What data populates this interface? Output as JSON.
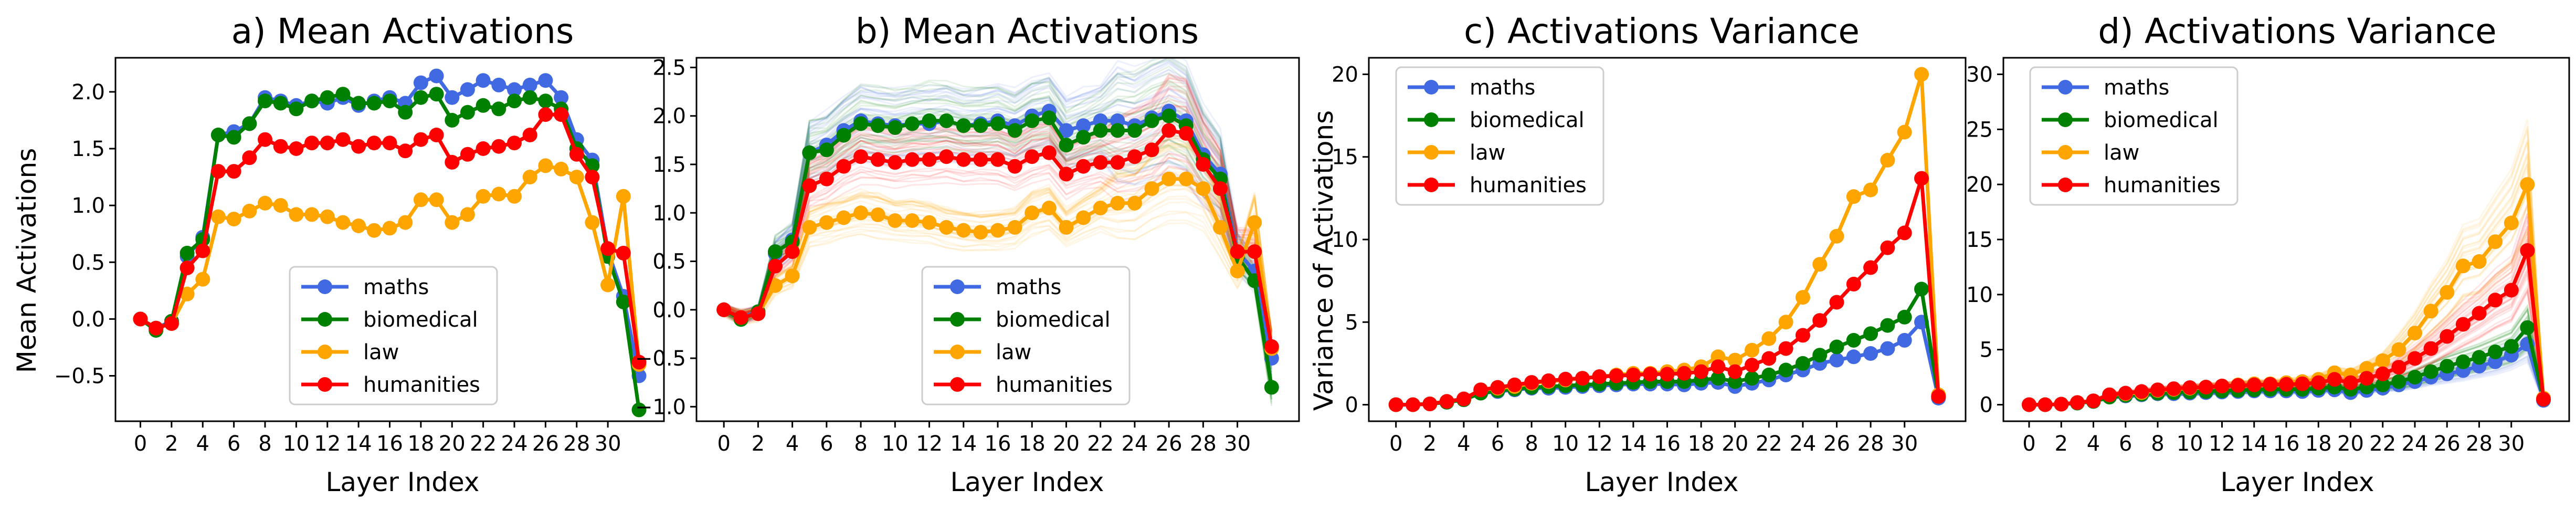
{
  "figure": {
    "panels": [
      {
        "title": "a) Mean Activations",
        "xlabel": "Layer Index",
        "ylabel": "Mean Activations"
      },
      {
        "title": "b) Mean Activations",
        "xlabel": "Layer Index",
        "ylabel": ""
      },
      {
        "title": "c) Activations Variance",
        "xlabel": "Layer Index",
        "ylabel": "Variance of Activations"
      },
      {
        "title": "d) Activations Variance",
        "xlabel": "Layer Index",
        "ylabel": ""
      }
    ]
  },
  "chart_data": [
    {
      "type": "line",
      "title": "a) Mean Activations",
      "xlabel": "Layer Index",
      "ylabel": "Mean Activations",
      "x": [
        0,
        1,
        2,
        3,
        4,
        5,
        6,
        7,
        8,
        9,
        10,
        11,
        12,
        13,
        14,
        15,
        16,
        17,
        18,
        19,
        20,
        21,
        22,
        23,
        24,
        25,
        26,
        27,
        28,
        29,
        30,
        31,
        32
      ],
      "xticks": [
        0,
        2,
        4,
        6,
        8,
        10,
        12,
        14,
        16,
        18,
        20,
        22,
        24,
        26,
        28,
        30
      ],
      "xlim": [
        -1.6,
        33.6
      ],
      "yticks": [
        -0.5,
        0.0,
        0.5,
        1.0,
        1.5,
        2.0
      ],
      "ylim": [
        -0.9,
        2.3
      ],
      "legend_position": "lower center",
      "series": [
        {
          "name": "maths",
          "color": "#4169e1",
          "values": [
            0.0,
            -0.08,
            -0.02,
            0.55,
            0.72,
            1.62,
            1.65,
            1.72,
            1.95,
            1.92,
            1.88,
            1.92,
            1.9,
            1.95,
            1.88,
            1.92,
            1.95,
            1.9,
            2.08,
            2.14,
            1.95,
            2.02,
            2.1,
            2.06,
            2.02,
            2.06,
            2.1,
            1.95,
            1.58,
            1.4,
            0.6,
            0.2,
            -0.5
          ]
        },
        {
          "name": "biomedical",
          "color": "#008000",
          "values": [
            0.0,
            -0.1,
            -0.02,
            0.58,
            0.7,
            1.62,
            1.6,
            1.72,
            1.92,
            1.9,
            1.85,
            1.92,
            1.95,
            1.98,
            1.9,
            1.9,
            1.92,
            1.82,
            1.95,
            1.98,
            1.75,
            1.82,
            1.88,
            1.85,
            1.92,
            1.95,
            1.92,
            1.85,
            1.5,
            1.35,
            0.55,
            0.15,
            -0.8
          ]
        },
        {
          "name": "law",
          "color": "#ffa500",
          "values": [
            0.0,
            -0.08,
            -0.04,
            0.22,
            0.35,
            0.9,
            0.88,
            0.95,
            1.02,
            1.0,
            0.92,
            0.92,
            0.9,
            0.85,
            0.82,
            0.78,
            0.8,
            0.85,
            1.05,
            1.05,
            0.85,
            0.92,
            1.08,
            1.1,
            1.08,
            1.25,
            1.35,
            1.32,
            1.25,
            0.85,
            0.3,
            1.08,
            -0.4
          ]
        },
        {
          "name": "humanities",
          "color": "#ff0000",
          "values": [
            0.0,
            -0.08,
            -0.04,
            0.45,
            0.6,
            1.3,
            1.3,
            1.42,
            1.58,
            1.52,
            1.5,
            1.55,
            1.55,
            1.58,
            1.52,
            1.55,
            1.55,
            1.48,
            1.58,
            1.62,
            1.38,
            1.45,
            1.5,
            1.52,
            1.55,
            1.62,
            1.8,
            1.8,
            1.45,
            1.25,
            0.62,
            0.58,
            -0.38
          ]
        }
      ]
    },
    {
      "type": "line",
      "title": "b) Mean Activations",
      "xlabel": "Layer Index",
      "ylabel": "",
      "x": [
        0,
        1,
        2,
        3,
        4,
        5,
        6,
        7,
        8,
        9,
        10,
        11,
        12,
        13,
        14,
        15,
        16,
        17,
        18,
        19,
        20,
        21,
        22,
        23,
        24,
        25,
        26,
        27,
        28,
        29,
        30,
        31,
        32
      ],
      "xticks": [
        0,
        2,
        4,
        6,
        8,
        10,
        12,
        14,
        16,
        18,
        20,
        22,
        24,
        26,
        28,
        30
      ],
      "xlim": [
        -1.6,
        33.6
      ],
      "yticks": [
        -1.0,
        -0.5,
        0.0,
        0.5,
        1.0,
        1.5,
        2.0,
        2.5
      ],
      "ylim": [
        -1.15,
        2.6
      ],
      "legend_position": "lower center",
      "note_bands": "each series drawn with many faint per-sample lines spreading around the mean line",
      "series": [
        {
          "name": "maths",
          "color": "#4169e1",
          "values": [
            0.0,
            -0.08,
            -0.02,
            0.58,
            0.72,
            1.62,
            1.7,
            1.85,
            1.95,
            1.92,
            1.9,
            1.92,
            1.92,
            1.95,
            1.9,
            1.92,
            1.95,
            1.9,
            2.0,
            2.05,
            1.85,
            1.9,
            1.95,
            1.95,
            1.9,
            1.98,
            2.05,
            1.95,
            1.6,
            1.4,
            0.6,
            0.4,
            -0.5
          ]
        },
        {
          "name": "biomedical",
          "color": "#008000",
          "values": [
            0.0,
            -0.1,
            -0.02,
            0.6,
            0.7,
            1.62,
            1.65,
            1.8,
            1.92,
            1.9,
            1.88,
            1.92,
            1.95,
            1.95,
            1.9,
            1.9,
            1.92,
            1.85,
            1.95,
            1.98,
            1.7,
            1.78,
            1.85,
            1.85,
            1.85,
            1.95,
            2.0,
            1.9,
            1.55,
            1.35,
            0.55,
            0.3,
            -0.8
          ]
        },
        {
          "name": "law",
          "color": "#ffa500",
          "values": [
            0.0,
            -0.08,
            -0.04,
            0.25,
            0.35,
            0.85,
            0.9,
            0.95,
            1.0,
            0.98,
            0.92,
            0.92,
            0.9,
            0.85,
            0.82,
            0.8,
            0.82,
            0.85,
            1.0,
            1.05,
            0.85,
            0.95,
            1.05,
            1.1,
            1.1,
            1.25,
            1.35,
            1.35,
            1.25,
            0.85,
            0.4,
            0.9,
            -0.4
          ]
        },
        {
          "name": "humanities",
          "color": "#ff0000",
          "values": [
            0.0,
            -0.08,
            -0.04,
            0.45,
            0.6,
            1.28,
            1.35,
            1.48,
            1.58,
            1.55,
            1.52,
            1.55,
            1.55,
            1.58,
            1.55,
            1.55,
            1.55,
            1.48,
            1.58,
            1.62,
            1.4,
            1.48,
            1.52,
            1.52,
            1.58,
            1.65,
            1.85,
            1.82,
            1.5,
            1.25,
            0.6,
            0.6,
            -0.38
          ]
        }
      ]
    },
    {
      "type": "line",
      "title": "c) Activations Variance",
      "xlabel": "Layer Index",
      "ylabel": "Variance of Activations",
      "x": [
        0,
        1,
        2,
        3,
        4,
        5,
        6,
        7,
        8,
        9,
        10,
        11,
        12,
        13,
        14,
        15,
        16,
        17,
        18,
        19,
        20,
        21,
        22,
        23,
        24,
        25,
        26,
        27,
        28,
        29,
        30,
        31,
        32
      ],
      "xticks": [
        0,
        2,
        4,
        6,
        8,
        10,
        12,
        14,
        16,
        18,
        20,
        22,
        24,
        26,
        28,
        30
      ],
      "xlim": [
        -1.6,
        33.6
      ],
      "yticks": [
        0,
        5,
        10,
        15,
        20
      ],
      "ylim": [
        -1.0,
        21.0
      ],
      "legend_position": "upper left",
      "series": [
        {
          "name": "maths",
          "color": "#4169e1",
          "values": [
            0.0,
            0.0,
            0.05,
            0.15,
            0.3,
            0.7,
            0.8,
            0.9,
            1.0,
            1.0,
            1.05,
            1.1,
            1.15,
            1.2,
            1.25,
            1.25,
            1.25,
            1.2,
            1.3,
            1.35,
            1.1,
            1.3,
            1.5,
            1.8,
            2.1,
            2.5,
            2.7,
            2.9,
            3.1,
            3.4,
            3.9,
            5.0,
            0.4
          ]
        },
        {
          "name": "biomedical",
          "color": "#008000",
          "values": [
            0.0,
            0.0,
            0.05,
            0.15,
            0.3,
            0.7,
            0.85,
            0.95,
            1.05,
            1.1,
            1.15,
            1.2,
            1.25,
            1.3,
            1.35,
            1.4,
            1.4,
            1.4,
            1.5,
            1.6,
            1.4,
            1.6,
            1.8,
            2.1,
            2.5,
            3.0,
            3.5,
            3.9,
            4.3,
            4.8,
            5.3,
            7.0,
            0.5
          ]
        },
        {
          "name": "law",
          "color": "#ffa500",
          "values": [
            0.0,
            0.0,
            0.05,
            0.2,
            0.35,
            0.9,
            1.0,
            1.1,
            1.3,
            1.4,
            1.5,
            1.6,
            1.7,
            1.8,
            1.9,
            1.9,
            2.0,
            2.1,
            2.3,
            2.9,
            2.7,
            3.3,
            4.0,
            5.0,
            6.5,
            8.5,
            10.2,
            12.6,
            13.0,
            14.8,
            16.5,
            20.0,
            0.6
          ]
        },
        {
          "name": "humanities",
          "color": "#ff0000",
          "values": [
            0.0,
            0.0,
            0.05,
            0.2,
            0.35,
            0.9,
            1.05,
            1.2,
            1.35,
            1.45,
            1.55,
            1.6,
            1.7,
            1.75,
            1.8,
            1.85,
            1.85,
            1.9,
            2.0,
            2.3,
            2.0,
            2.4,
            2.8,
            3.4,
            4.2,
            5.1,
            6.2,
            7.3,
            8.3,
            9.5,
            10.4,
            13.7,
            0.5
          ]
        }
      ]
    },
    {
      "type": "line",
      "title": "d) Activations Variance",
      "xlabel": "Layer Index",
      "ylabel": "",
      "x": [
        0,
        1,
        2,
        3,
        4,
        5,
        6,
        7,
        8,
        9,
        10,
        11,
        12,
        13,
        14,
        15,
        16,
        17,
        18,
        19,
        20,
        21,
        22,
        23,
        24,
        25,
        26,
        27,
        28,
        29,
        30,
        31,
        32
      ],
      "xticks": [
        0,
        2,
        4,
        6,
        8,
        10,
        12,
        14,
        16,
        18,
        20,
        22,
        24,
        26,
        28,
        30
      ],
      "xlim": [
        -1.6,
        33.6
      ],
      "yticks": [
        0,
        5,
        10,
        15,
        20,
        25,
        30
      ],
      "ylim": [
        -1.5,
        31.5
      ],
      "legend_position": "upper left",
      "note_bands": "each series drawn with many faint per-sample lines spreading around the mean line",
      "series": [
        {
          "name": "maths",
          "color": "#4169e1",
          "values": [
            0.0,
            0.0,
            0.05,
            0.15,
            0.3,
            0.7,
            0.8,
            0.9,
            1.0,
            1.0,
            1.05,
            1.1,
            1.15,
            1.2,
            1.25,
            1.25,
            1.25,
            1.2,
            1.3,
            1.35,
            1.1,
            1.3,
            1.5,
            1.8,
            2.1,
            2.5,
            2.8,
            3.1,
            3.5,
            3.9,
            4.5,
            5.5,
            0.4
          ]
        },
        {
          "name": "biomedical",
          "color": "#008000",
          "values": [
            0.0,
            0.0,
            0.05,
            0.15,
            0.3,
            0.7,
            0.85,
            0.95,
            1.05,
            1.1,
            1.15,
            1.2,
            1.25,
            1.3,
            1.35,
            1.4,
            1.4,
            1.4,
            1.5,
            1.6,
            1.4,
            1.6,
            1.8,
            2.1,
            2.5,
            3.0,
            3.5,
            3.9,
            4.3,
            4.8,
            5.3,
            7.0,
            0.5
          ]
        },
        {
          "name": "law",
          "color": "#ffa500",
          "values": [
            0.0,
            0.0,
            0.05,
            0.2,
            0.35,
            0.9,
            1.0,
            1.1,
            1.3,
            1.4,
            1.5,
            1.6,
            1.7,
            1.8,
            1.9,
            1.9,
            2.0,
            2.1,
            2.3,
            2.9,
            2.7,
            3.3,
            4.0,
            5.0,
            6.5,
            8.5,
            10.2,
            12.6,
            13.0,
            14.8,
            16.5,
            20.0,
            0.6
          ]
        },
        {
          "name": "humanities",
          "color": "#ff0000",
          "values": [
            0.0,
            0.0,
            0.05,
            0.2,
            0.35,
            0.9,
            1.05,
            1.2,
            1.35,
            1.45,
            1.55,
            1.6,
            1.7,
            1.75,
            1.8,
            1.85,
            1.85,
            1.9,
            2.0,
            2.3,
            2.0,
            2.4,
            2.8,
            3.4,
            4.2,
            5.1,
            6.2,
            7.3,
            8.3,
            9.5,
            10.4,
            14.0,
            0.5
          ]
        }
      ]
    }
  ]
}
